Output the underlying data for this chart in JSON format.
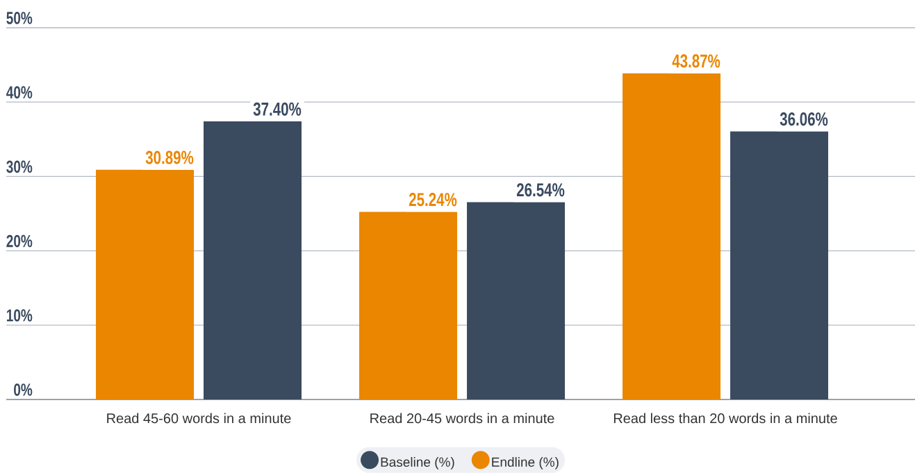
{
  "chart_data": {
    "type": "bar",
    "categories": [
      "Read 45-60 words in a minute",
      "Read 20-45 words in a minute",
      "Read less than 20 words in a minute"
    ],
    "series": [
      {
        "name": "Endline (%)",
        "color": "#EA8600",
        "values": [
          30.89,
          25.24,
          43.87
        ],
        "value_labels": [
          "30.89%",
          "25.24%",
          "43.87%"
        ]
      },
      {
        "name": "Baseline (%)",
        "color": "#3A4A5F",
        "values": [
          37.4,
          26.54,
          36.06
        ],
        "value_labels": [
          "37.40%",
          "26.54%",
          "36.06%"
        ]
      }
    ],
    "ylim": [
      0,
      50
    ],
    "yticks": [
      {
        "value": 0,
        "label": "0%"
      },
      {
        "value": 10,
        "label": "10%"
      },
      {
        "value": 20,
        "label": "20%"
      },
      {
        "value": 30,
        "label": "30%"
      },
      {
        "value": 40,
        "label": "40%"
      },
      {
        "value": 50,
        "label": "50%"
      }
    ],
    "grid": "y",
    "legend": "bottom"
  }
}
